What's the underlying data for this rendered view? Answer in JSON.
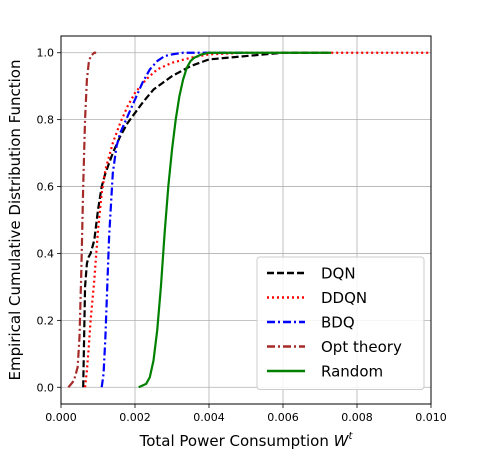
{
  "chart_data": {
    "type": "line",
    "title": "",
    "xlabel": "Total Power Consumption",
    "xlabel_symbol": "W",
    "xlabel_superscript": "t",
    "ylabel": "Empirical Cumulative Distribution Function",
    "xlim": [
      0.0,
      0.01
    ],
    "ylim": [
      -0.05,
      1.05
    ],
    "x_ticks": [
      0.0,
      0.002,
      0.004,
      0.006,
      0.008,
      0.01
    ],
    "x_tick_labels": [
      "0.000",
      "0.002",
      "0.004",
      "0.006",
      "0.008",
      "0.010"
    ],
    "y_ticks": [
      0.0,
      0.2,
      0.4,
      0.6,
      0.8,
      1.0
    ],
    "y_tick_labels": [
      "0.0",
      "0.2",
      "0.4",
      "0.6",
      "0.8",
      "1.0"
    ],
    "grid": true,
    "legend_position": "bottom-right",
    "series": [
      {
        "name": "DQN",
        "color": "#000000",
        "dash": "dashed",
        "x": [
          0.0006,
          0.00065,
          0.0007,
          0.00075,
          0.0008,
          0.0009,
          0.001,
          0.0011,
          0.0012,
          0.0014,
          0.0016,
          0.0018,
          0.002,
          0.0022,
          0.0025,
          0.003,
          0.0035,
          0.004,
          0.005,
          0.006,
          0.0073
        ],
        "y": [
          0.0,
          0.3,
          0.37,
          0.39,
          0.4,
          0.44,
          0.53,
          0.6,
          0.64,
          0.7,
          0.75,
          0.79,
          0.82,
          0.85,
          0.89,
          0.93,
          0.96,
          0.98,
          0.99,
          1.0,
          1.0
        ]
      },
      {
        "name": "DDQN",
        "color": "#ff0000",
        "dash": "dotted",
        "x": [
          0.00065,
          0.0007,
          0.00075,
          0.0008,
          0.0009,
          0.001,
          0.0011,
          0.0012,
          0.0014,
          0.0016,
          0.0018,
          0.002,
          0.0023,
          0.0026,
          0.003,
          0.0035,
          0.004,
          0.005,
          0.006,
          0.007,
          0.008,
          0.01
        ],
        "y": [
          0.0,
          0.05,
          0.12,
          0.2,
          0.32,
          0.47,
          0.58,
          0.65,
          0.73,
          0.79,
          0.84,
          0.88,
          0.92,
          0.95,
          0.97,
          0.985,
          0.995,
          1.0,
          1.0,
          1.0,
          1.0,
          1.0
        ]
      },
      {
        "name": "BDQ",
        "color": "#0000ff",
        "dash": "dashdot",
        "x": [
          0.0011,
          0.00115,
          0.0012,
          0.00125,
          0.0013,
          0.0014,
          0.0015,
          0.0016,
          0.0018,
          0.002,
          0.0022,
          0.0024,
          0.0026,
          0.0028,
          0.003,
          0.0033,
          0.0036,
          0.004,
          0.0045,
          0.005
        ],
        "y": [
          0.0,
          0.04,
          0.15,
          0.3,
          0.45,
          0.64,
          0.72,
          0.76,
          0.81,
          0.86,
          0.91,
          0.95,
          0.975,
          0.99,
          0.995,
          1.0,
          1.0,
          1.0,
          1.0,
          1.0
        ]
      },
      {
        "name": "Opt theory",
        "color": "#a52a2a",
        "dash": "dashdot",
        "x": [
          0.0002,
          0.00035,
          0.00045,
          0.0005,
          0.00055,
          0.0006,
          0.00065,
          0.0007,
          0.00075,
          0.0008,
          0.0009,
          0.00095
        ],
        "y": [
          0.0,
          0.02,
          0.06,
          0.15,
          0.35,
          0.6,
          0.8,
          0.92,
          0.97,
          0.99,
          1.0,
          1.0
        ]
      },
      {
        "name": "Random",
        "color": "#008000",
        "dash": "solid",
        "x": [
          0.0021,
          0.0023,
          0.0024,
          0.0025,
          0.0026,
          0.0027,
          0.0028,
          0.0029,
          0.003,
          0.0031,
          0.0032,
          0.0033,
          0.0034,
          0.0035,
          0.0036,
          0.0038,
          0.004,
          0.0045,
          0.005,
          0.006,
          0.007,
          0.0073
        ],
        "y": [
          0.0,
          0.01,
          0.03,
          0.08,
          0.17,
          0.3,
          0.46,
          0.6,
          0.71,
          0.8,
          0.87,
          0.92,
          0.955,
          0.975,
          0.985,
          0.995,
          1.0,
          1.0,
          1.0,
          1.0,
          1.0,
          1.0
        ]
      }
    ]
  }
}
